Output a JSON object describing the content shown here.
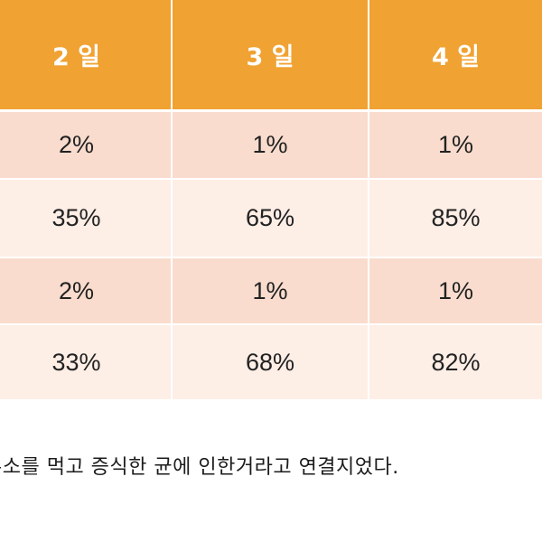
{
  "table": {
    "headers": [
      "2 일",
      "3 일",
      "4 일"
    ],
    "rows": [
      [
        "2%",
        "1%",
        "1%"
      ],
      [
        "35%",
        "65%",
        "85%"
      ],
      [
        "2%",
        "1%",
        "1%"
      ],
      [
        "33%",
        "68%",
        "82%"
      ]
    ]
  },
  "caption": "수소를 먹고 증식한 균에 인한거라고 연결지었다.",
  "colors": {
    "header_bg": "#f0a232",
    "row_dark": "#f9dccd",
    "row_light": "#fdeee6"
  }
}
